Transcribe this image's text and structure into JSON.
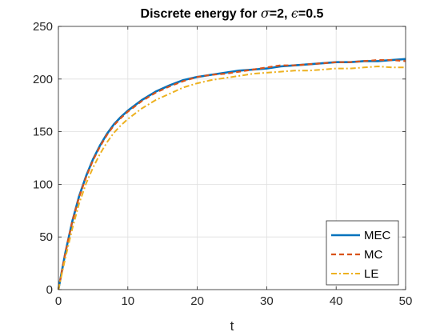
{
  "chart_data": {
    "type": "line",
    "title_prefix": "Discrete energy for ",
    "title_sigma_symbol": "σ",
    "title_sigma_value": "=2, ",
    "title_eps_symbol": "ϵ",
    "title_eps_value": "=0.5",
    "xlabel": "t",
    "ylabel": "",
    "xlim": [
      0,
      50
    ],
    "ylim": [
      0,
      250
    ],
    "xticks": [
      0,
      10,
      20,
      30,
      40,
      50
    ],
    "yticks": [
      0,
      50,
      100,
      150,
      200,
      250
    ],
    "grid": true,
    "legend_position": "bottom-right",
    "series": [
      {
        "name": "MEC",
        "color": "#0072BD",
        "style": "solid",
        "x": [
          0,
          1,
          2,
          3,
          4,
          5,
          6,
          7,
          8,
          9,
          10,
          12,
          14,
          16,
          18,
          20,
          22,
          24,
          26,
          28,
          30,
          32,
          34,
          36,
          38,
          40,
          42,
          44,
          46,
          48,
          50
        ],
        "y": [
          0,
          35,
          65,
          89,
          108,
          124,
          137,
          148,
          157,
          164,
          170,
          180,
          188,
          194,
          199,
          202,
          204,
          206,
          208,
          209,
          210,
          212,
          213,
          214,
          215,
          216,
          216,
          217,
          217,
          218,
          219
        ]
      },
      {
        "name": "MC",
        "color": "#D95319",
        "style": "dashed",
        "x": [
          0,
          1,
          2,
          3,
          4,
          5,
          6,
          7,
          8,
          9,
          10,
          12,
          14,
          16,
          18,
          20,
          22,
          24,
          26,
          28,
          30,
          32,
          34,
          36,
          38,
          40,
          42,
          44,
          46,
          48,
          50
        ],
        "y": [
          0,
          35,
          65,
          88,
          107,
          123,
          136,
          147,
          156,
          163,
          169,
          179,
          187,
          193,
          198,
          202,
          204,
          205,
          207,
          209,
          211,
          213,
          213,
          214,
          215,
          216,
          216,
          217,
          218,
          218,
          217
        ]
      },
      {
        "name": "LE",
        "color": "#EDB120",
        "style": "dashdot",
        "x": [
          0,
          1,
          2,
          3,
          4,
          5,
          6,
          7,
          8,
          9,
          10,
          12,
          14,
          16,
          18,
          20,
          22,
          24,
          26,
          28,
          30,
          32,
          34,
          36,
          38,
          40,
          42,
          44,
          46,
          48,
          50
        ],
        "y": [
          0,
          30,
          58,
          82,
          101,
          116,
          129,
          140,
          149,
          156,
          162,
          172,
          180,
          186,
          192,
          196,
          199,
          201,
          203,
          205,
          206,
          207,
          208,
          208,
          209,
          210,
          210,
          211,
          212,
          211,
          211
        ]
      }
    ]
  }
}
